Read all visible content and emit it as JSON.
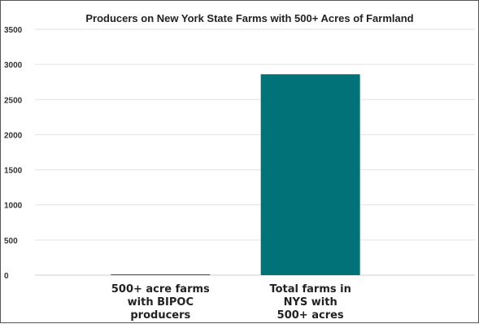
{
  "chart_data": {
    "type": "bar",
    "title": "Producers on New York State Farms with 500+ Acres of Farmland",
    "categories": [
      [
        "500+ acre farms",
        "with BIPOC",
        "producers"
      ],
      [
        "Total farms in",
        "NYS with",
        "500+ acres"
      ]
    ],
    "values": [
      12,
      2860
    ],
    "ylim": [
      0,
      3500
    ],
    "yticks": [
      0,
      500,
      1000,
      1500,
      2000,
      2500,
      3000,
      3500
    ],
    "grid": true,
    "color": "#007278",
    "xlabel": "",
    "ylabel": ""
  }
}
